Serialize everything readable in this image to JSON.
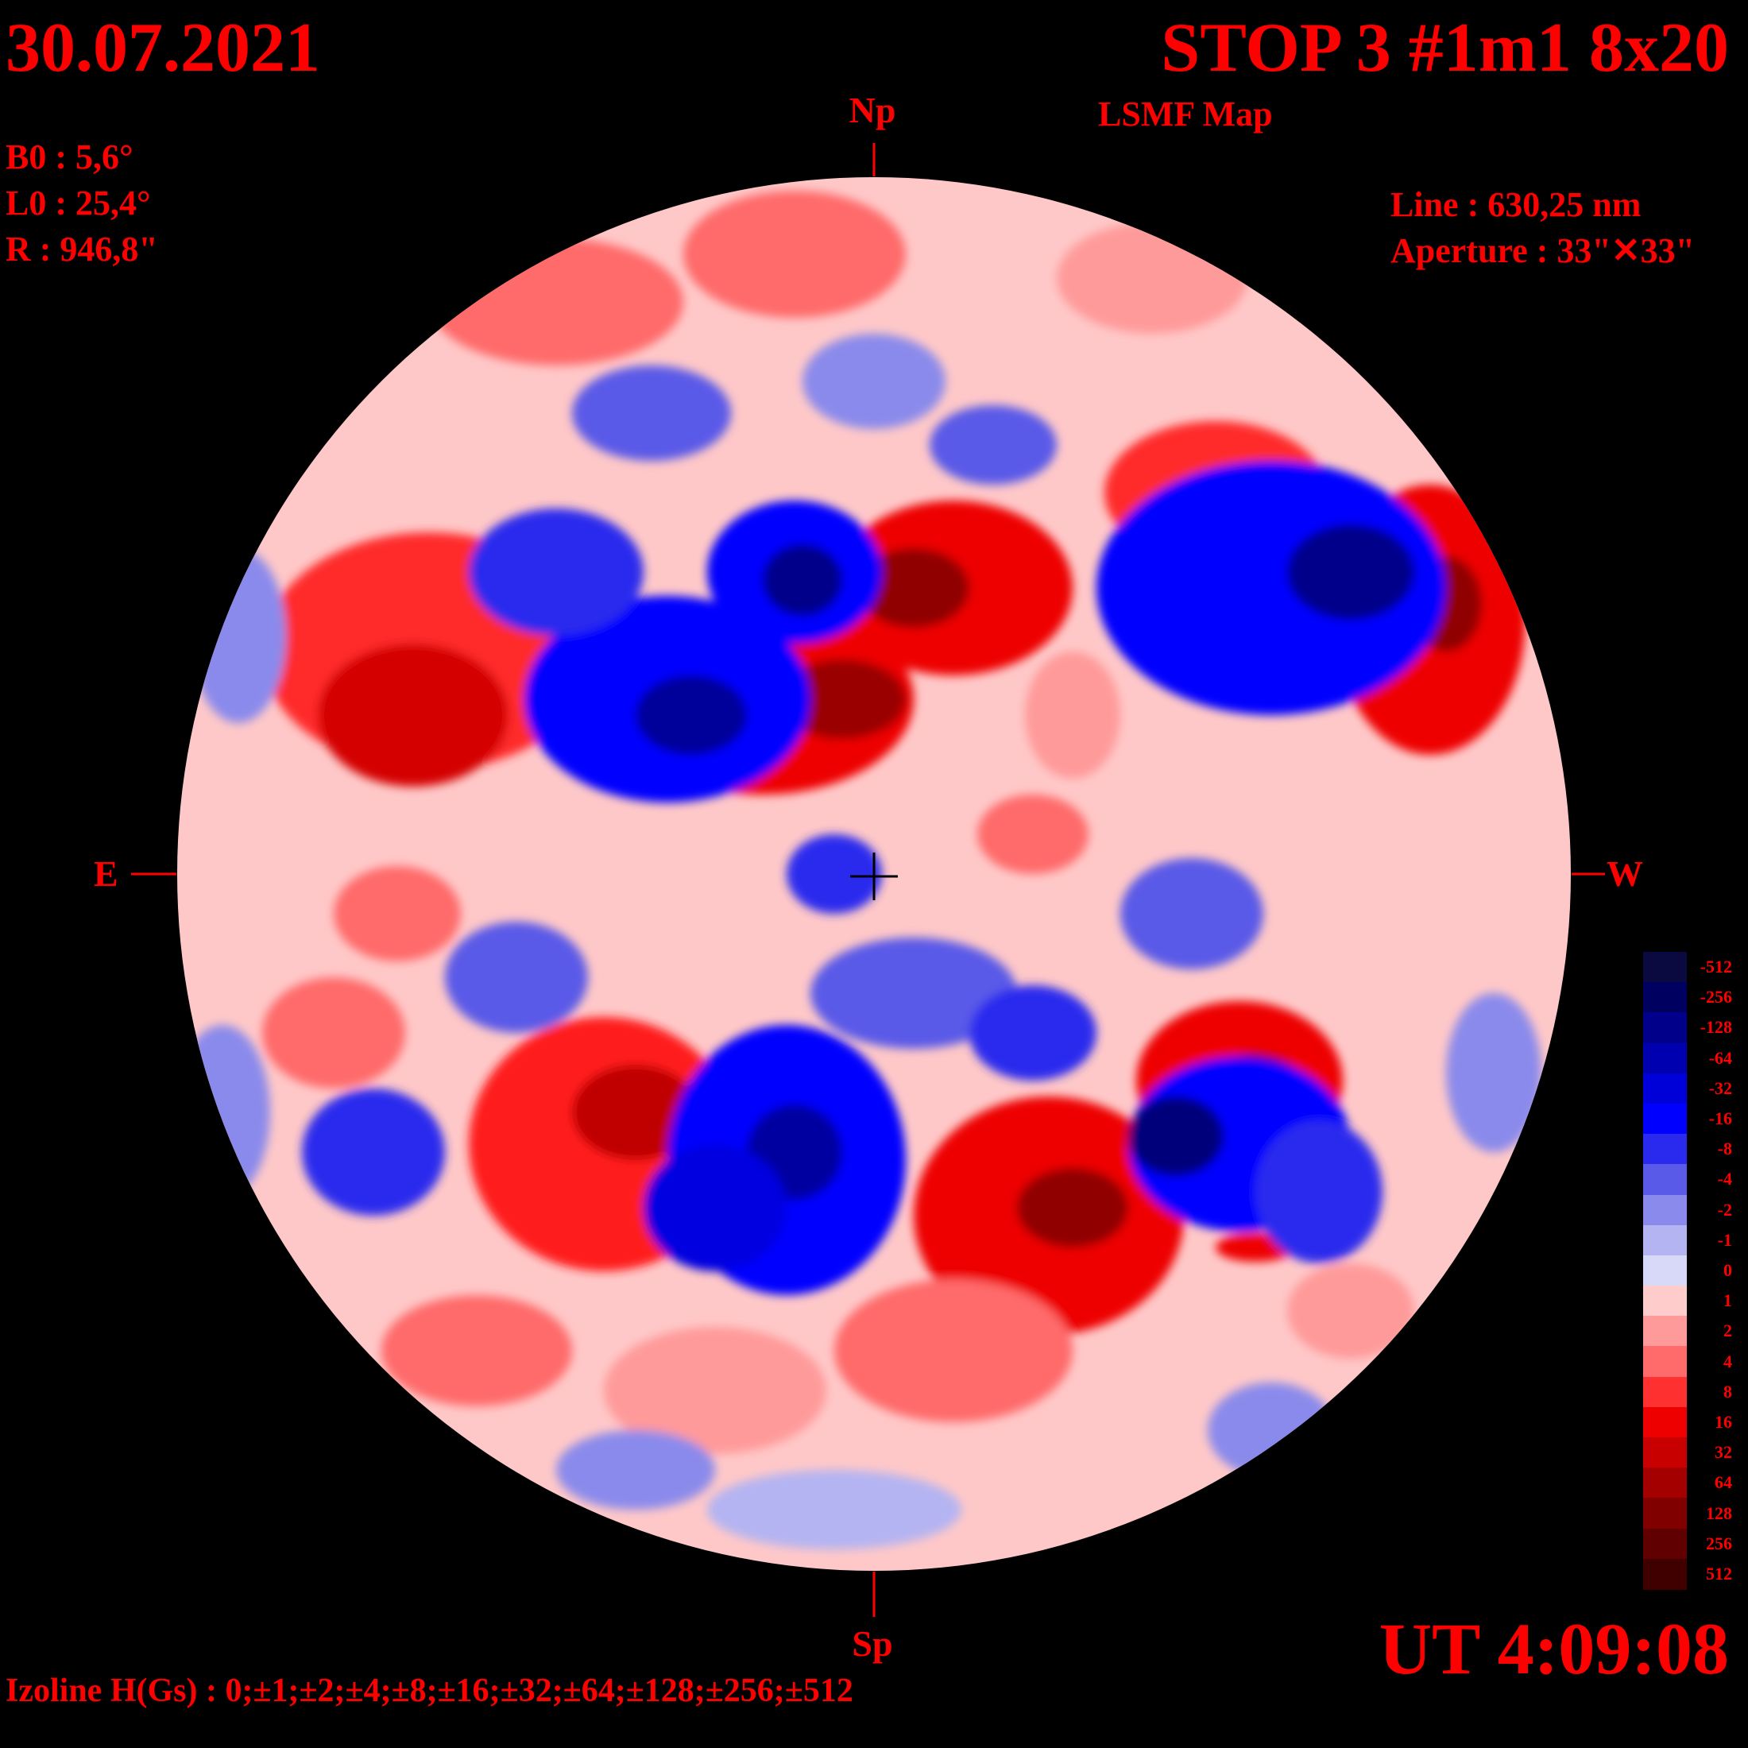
{
  "header": {
    "date": "30.07.2021",
    "title": "STOP 3 #1m1 8x20",
    "subtitle": "LSMF  Map"
  },
  "params": {
    "b0": "B0 : 5,6°",
    "l0": "L0 : 25,4°",
    "r": "R  : 946,8\"",
    "line": "Line :  630,25 nm",
    "aperture": "Aperture : 33\"✕33\""
  },
  "directions": {
    "north": "Np",
    "south": "Sp",
    "east": "E",
    "west": "W"
  },
  "footer": {
    "ut": "UT 4:09:08",
    "izoline": "Izoline H(Gs) : 0;±1;±2;±4;±8;±16;±32;±64;±128;±256;±512"
  },
  "colorbar": {
    "levels": [
      {
        "label": "-512",
        "color": "#0a0a40"
      },
      {
        "label": "-256",
        "color": "#000060"
      },
      {
        "label": "-128",
        "color": "#00008a"
      },
      {
        "label": "-64",
        "color": "#0000b0"
      },
      {
        "label": "-32",
        "color": "#0000d8"
      },
      {
        "label": "-16",
        "color": "#0000ff"
      },
      {
        "label": "-8",
        "color": "#2a2aee"
      },
      {
        "label": "-4",
        "color": "#5a5ae8"
      },
      {
        "label": "-2",
        "color": "#8a8aec"
      },
      {
        "label": "-1",
        "color": "#b4b4f2"
      },
      {
        "label": "0",
        "color": "#d8d8f8"
      },
      {
        "label": "1",
        "color": "#ffcccc"
      },
      {
        "label": "2",
        "color": "#ff9a9a"
      },
      {
        "label": "4",
        "color": "#ff6a6a"
      },
      {
        "label": "8",
        "color": "#ff3030"
      },
      {
        "label": "16",
        "color": "#ee0000"
      },
      {
        "label": "32",
        "color": "#c80000"
      },
      {
        "label": "64",
        "color": "#a40000"
      },
      {
        "label": "128",
        "color": "#800000"
      },
      {
        "label": "256",
        "color": "#600000"
      },
      {
        "label": "512",
        "color": "#400000"
      }
    ]
  },
  "colors": {
    "text": "#ff0000",
    "background": "#000000",
    "negative_strong": "#0000ff",
    "positive_strong": "#ff0000",
    "neutral": "#ffcccc"
  }
}
